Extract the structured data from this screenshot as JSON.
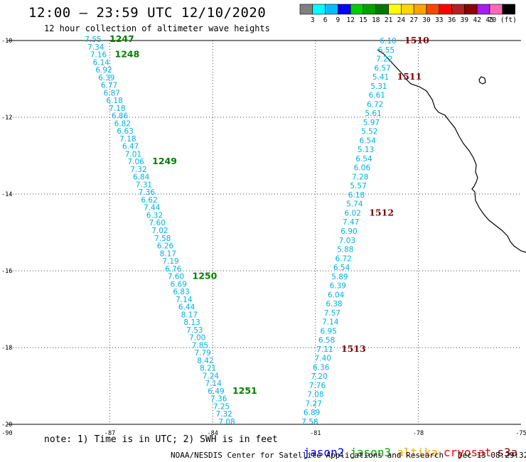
{
  "header": {
    "title": "12:00 – 23:59 UTC 12/10/2020",
    "subtitle": "12 hour collection of altimeter wave heights"
  },
  "color_scale": {
    "labels": [
      "3",
      "6",
      "9",
      "12",
      "15",
      "18",
      "21",
      "24",
      "27",
      "30",
      "33",
      "36",
      "39",
      "42",
      "45",
      "70 (ft)"
    ],
    "colors": [
      "#808080",
      "#00ffff",
      "#00bfff",
      "#0000ff",
      "#00cd00",
      "#00a000",
      "#007800",
      "#ffff00",
      "#ffd700",
      "#ffa500",
      "#ff4500",
      "#ff0000",
      "#b22222",
      "#8b0000",
      "#a020f0",
      "#ff69b4",
      "#000000"
    ]
  },
  "map": {
    "x_ticks": [
      "-90",
      "-87",
      "-84",
      "-81",
      "-78",
      "-75"
    ],
    "y_ticks": [
      "-10",
      "-12",
      "-14",
      "-16",
      "-18",
      "-20"
    ],
    "pass_colors": {
      "jason3": "#008000",
      "cryosat": "#800000",
      "values": "#00b0e0"
    },
    "track_a": {
      "values": [
        "7.55",
        "7.34",
        "7.16",
        "6.14",
        "6.92",
        "6.39",
        "6.77",
        "6.87",
        "6.18",
        "7.18",
        "6.86",
        "6.82",
        "6.63",
        "7.18",
        "6.47",
        "7.01",
        "7.06",
        "7.32",
        "6.84",
        "7.31",
        "7.36",
        "6.62",
        "7.44",
        "6.32",
        "7.60",
        "7.02",
        "7.58",
        "6.26",
        "8.17",
        "7.19",
        "6.76",
        "7.60",
        "6.69",
        "6.83",
        "7.14",
        "6.44",
        "8.17",
        "8.13",
        "7.53",
        "7.00",
        "7.85",
        "7.79",
        "8.42",
        "8.21",
        "7.24",
        "7.14",
        "6.49",
        "7.36",
        "7.25",
        "7.32",
        "7.08"
      ],
      "times": [
        {
          "label": "1247",
          "index": 0
        },
        {
          "label": "1248",
          "index": 2
        },
        {
          "label": "1249",
          "index": 16
        },
        {
          "label": "1250",
          "index": 31
        },
        {
          "label": "1251",
          "index": 46
        }
      ]
    },
    "track_b": {
      "values": [
        "6.10",
        "6.55",
        "7.22",
        "6.57",
        "5.41",
        "5.31",
        "6.61",
        "6.72",
        "5.61",
        "5.97",
        "5.52",
        "6.54",
        "5.13",
        "6.54",
        "6.06",
        "7.28",
        "5.57",
        "6.18",
        "5.74",
        "6.02",
        "7.47",
        "6.90",
        "7.03",
        "5.88",
        "6.72",
        "6.54",
        "5.89",
        "6.39",
        "6.04",
        "6.38",
        "7.57",
        "7.14",
        "6.95",
        "6.58",
        "7.11",
        "7.40",
        "6.36",
        "7.20",
        "7.76",
        "7.08",
        "7.27",
        "6.89",
        "7.58"
      ],
      "times": [
        {
          "label": "1510",
          "index": 0
        },
        {
          "label": "1511",
          "index": 4
        },
        {
          "label": "1512",
          "index": 19
        },
        {
          "label": "1513",
          "index": 34
        }
      ]
    }
  },
  "footer": {
    "note": "note: 1) Time is in UTC; 2) SWH is in feet",
    "credit": "NOAA/NESDIS Center for Satellite Applications and Research   Dec 13 08:29:32 UTC 2020",
    "satellites": [
      {
        "name": "jason2",
        "color": "#0000ff"
      },
      {
        "name": "jason3",
        "color": "#00a000"
      },
      {
        "name": "altika",
        "color": "#ffa500"
      },
      {
        "name": "cryosat",
        "color": "#ff0000"
      },
      {
        "name": "s3a",
        "color": "#800000"
      }
    ]
  }
}
